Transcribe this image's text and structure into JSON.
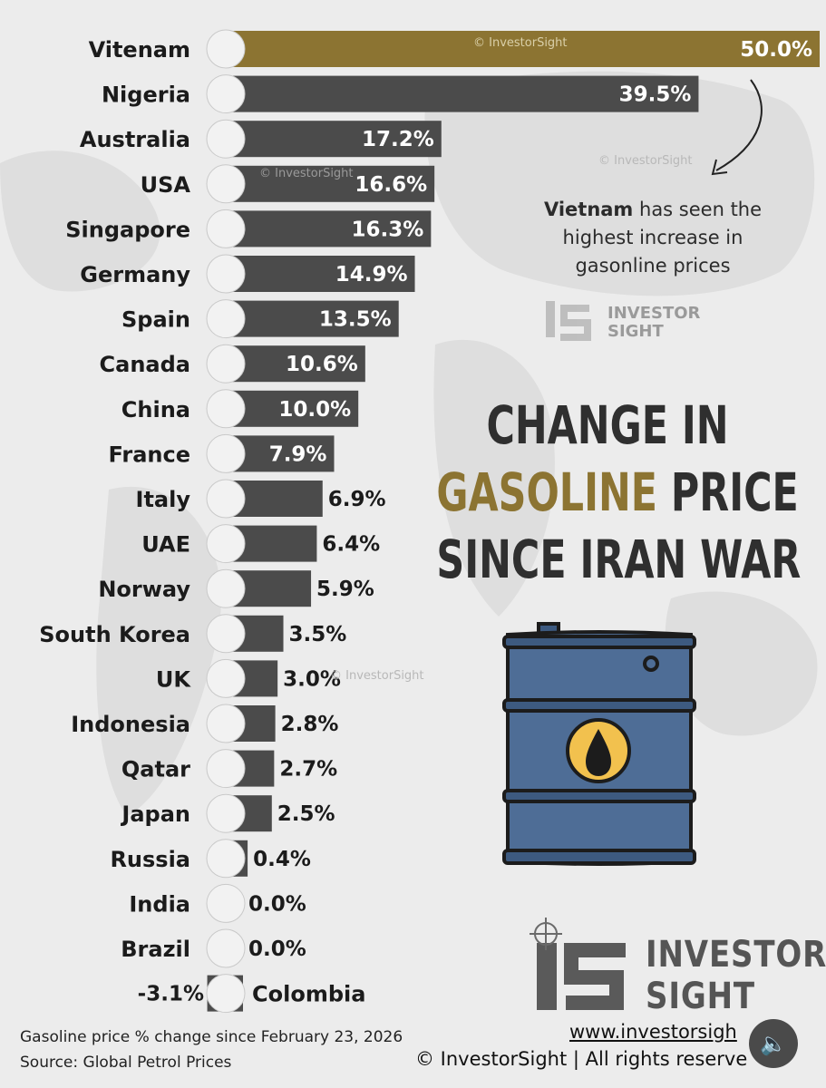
{
  "chart_data": {
    "type": "bar",
    "orientation": "horizontal",
    "categories": [
      "Vitenam",
      "Nigeria",
      "Australia",
      "USA",
      "Singapore",
      "Germany",
      "Spain",
      "Canada",
      "China",
      "France",
      "Italy",
      "UAE",
      "Norway",
      "South Korea",
      "UK",
      "Indonesia",
      "Qatar",
      "Japan",
      "Russia",
      "India",
      "Brazil",
      "Colombia"
    ],
    "values": [
      50.0,
      39.5,
      17.2,
      16.6,
      16.3,
      14.9,
      13.5,
      10.6,
      10.0,
      7.9,
      6.9,
      6.4,
      5.9,
      3.5,
      3.0,
      2.8,
      2.7,
      2.5,
      0.4,
      0.0,
      0.0,
      -3.1
    ],
    "value_labels": [
      "50.0%",
      "39.5%",
      "17.2%",
      "16.6%",
      "16.3%",
      "14.9%",
      "13.5%",
      "10.6%",
      "10.0%",
      "7.9%",
      "6.9%",
      "6.4%",
      "5.9%",
      "3.5%",
      "3.0%",
      "2.8%",
      "2.7%",
      "2.5%",
      "0.4%",
      "0.0%",
      "0.0%",
      "-3.1%"
    ],
    "highlight_index": 0,
    "colors": {
      "highlight": "#8c7432",
      "bar": "#4b4b4b",
      "text_on_bar": "#ffffff",
      "text": "#1b1b1b"
    },
    "title_lines": [
      {
        "text": "CHANGE IN",
        "accent": false
      },
      {
        "parts": [
          {
            "text": "GASOLINE",
            "accent": true
          },
          {
            "text": " PRICE",
            "accent": false
          }
        ]
      },
      {
        "text": "SINCE IRAN WAR",
        "accent": false
      }
    ],
    "grid": false
  },
  "annotation": {
    "bold": "Vietnam",
    "rest_line1": " has seen the",
    "line2": "highest increase in",
    "line3": "gasonline prices"
  },
  "footnotes": {
    "line1": "Gasoline price % change since February 23, 2026",
    "line2": "Source: Global Petrol Prices"
  },
  "brand": {
    "line1": "INVESTOR",
    "line2": "SIGHT",
    "website": "www.investorsigh",
    "copyright": "© InvestorSight |  All rights reserve",
    "watermark": "© InvestorSight",
    "logo_small_line1": "INVESTOR",
    "logo_small_line2": "SIGHT"
  },
  "icons": {
    "sound": "speaker-icon",
    "barrel": "oil-barrel-icon",
    "arrow": "curved-arrow-icon"
  }
}
